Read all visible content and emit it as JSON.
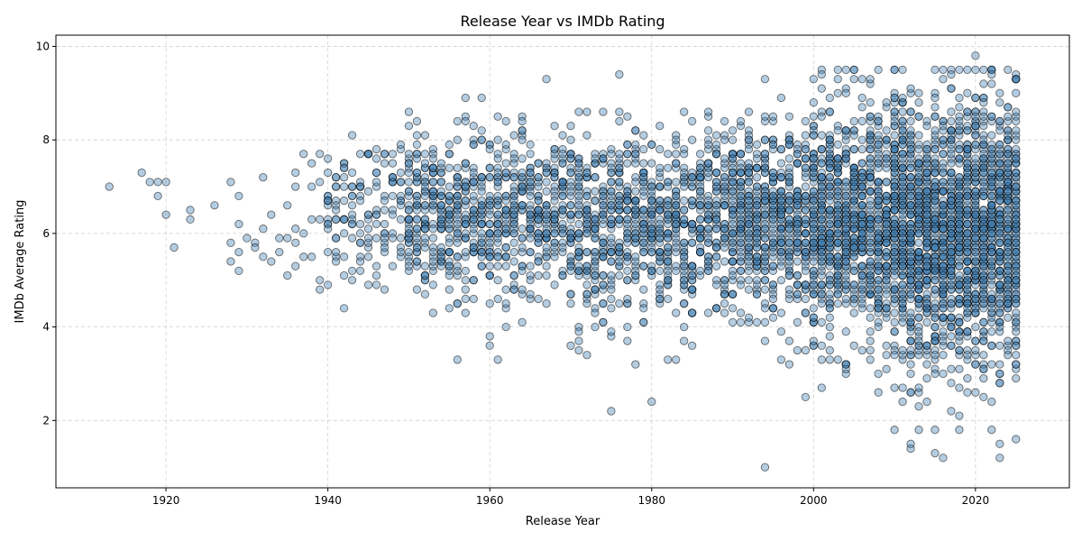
{
  "chart_data": {
    "type": "scatter",
    "title": "Release Year vs IMDb Rating",
    "xlabel": "Release Year",
    "ylabel": "IMDb Average Rating",
    "xlim": [
      1906.4,
      1931.6
    ],
    "xlim_full": [
      1906.4,
      2031.6
    ],
    "ylim": [
      0.56,
      10.24
    ],
    "xticks": [
      1920,
      1940,
      1960,
      1980,
      2000,
      2020
    ],
    "xtick_labels": [
      "1920",
      "1940",
      "1960",
      "1980",
      "2000",
      "2020"
    ],
    "yticks": [
      2,
      4,
      6,
      8,
      10
    ],
    "ytick_labels": [
      "2",
      "4",
      "6",
      "8",
      "10"
    ],
    "grid": true,
    "marker_color": "#4682b4",
    "marker_opacity": 0.4,
    "marker_edge": "#000000",
    "points": [
      {
        "x": 1913,
        "y": 7.0
      },
      {
        "x": 1917,
        "y": 7.3
      },
      {
        "x": 1918,
        "y": 7.1
      },
      {
        "x": 1919,
        "y": 7.1
      },
      {
        "x": 1919,
        "y": 6.8
      },
      {
        "x": 1920,
        "y": 7.1
      },
      {
        "x": 1920,
        "y": 6.4
      },
      {
        "x": 1921,
        "y": 5.7
      },
      {
        "x": 1923,
        "y": 6.5
      },
      {
        "x": 1923,
        "y": 6.3
      },
      {
        "x": 1926,
        "y": 6.6
      },
      {
        "x": 1928,
        "y": 7.1
      },
      {
        "x": 1928,
        "y": 5.8
      },
      {
        "x": 1928,
        "y": 5.4
      },
      {
        "x": 1929,
        "y": 6.8
      },
      {
        "x": 1929,
        "y": 6.2
      },
      {
        "x": 1929,
        "y": 5.6
      },
      {
        "x": 1929,
        "y": 5.2
      },
      {
        "x": 1930,
        "y": 5.9
      },
      {
        "x": 1931,
        "y": 5.8
      },
      {
        "x": 1931,
        "y": 5.7
      },
      {
        "x": 1932,
        "y": 7.2
      },
      {
        "x": 1932,
        "y": 6.1
      },
      {
        "x": 1932,
        "y": 5.5
      },
      {
        "x": 1933,
        "y": 6.4
      },
      {
        "x": 1933,
        "y": 5.4
      },
      {
        "x": 1934,
        "y": 5.9
      },
      {
        "x": 1934,
        "y": 5.6
      },
      {
        "x": 1935,
        "y": 6.6
      },
      {
        "x": 1935,
        "y": 5.9
      },
      {
        "x": 1935,
        "y": 5.1
      },
      {
        "x": 1936,
        "y": 7.3
      },
      {
        "x": 1936,
        "y": 7.0
      },
      {
        "x": 1936,
        "y": 6.1
      },
      {
        "x": 1936,
        "y": 5.8
      },
      {
        "x": 1936,
        "y": 5.3
      },
      {
        "x": 1937,
        "y": 7.7
      },
      {
        "x": 1937,
        "y": 6.0
      },
      {
        "x": 1937,
        "y": 5.5
      },
      {
        "x": 1938,
        "y": 7.5
      },
      {
        "x": 1938,
        "y": 7.0
      },
      {
        "x": 1938,
        "y": 6.3
      },
      {
        "x": 1938,
        "y": 5.5
      },
      {
        "x": 1939,
        "y": 7.7
      },
      {
        "x": 1939,
        "y": 7.1
      },
      {
        "x": 1939,
        "y": 6.3
      },
      {
        "x": 1939,
        "y": 5.0
      },
      {
        "x": 1939,
        "y": 4.8
      }
    ],
    "dense_region": {
      "x_range": [
        1940,
        2025
      ],
      "y_range": [
        1.0,
        9.8
      ],
      "note": ""
    }
  }
}
